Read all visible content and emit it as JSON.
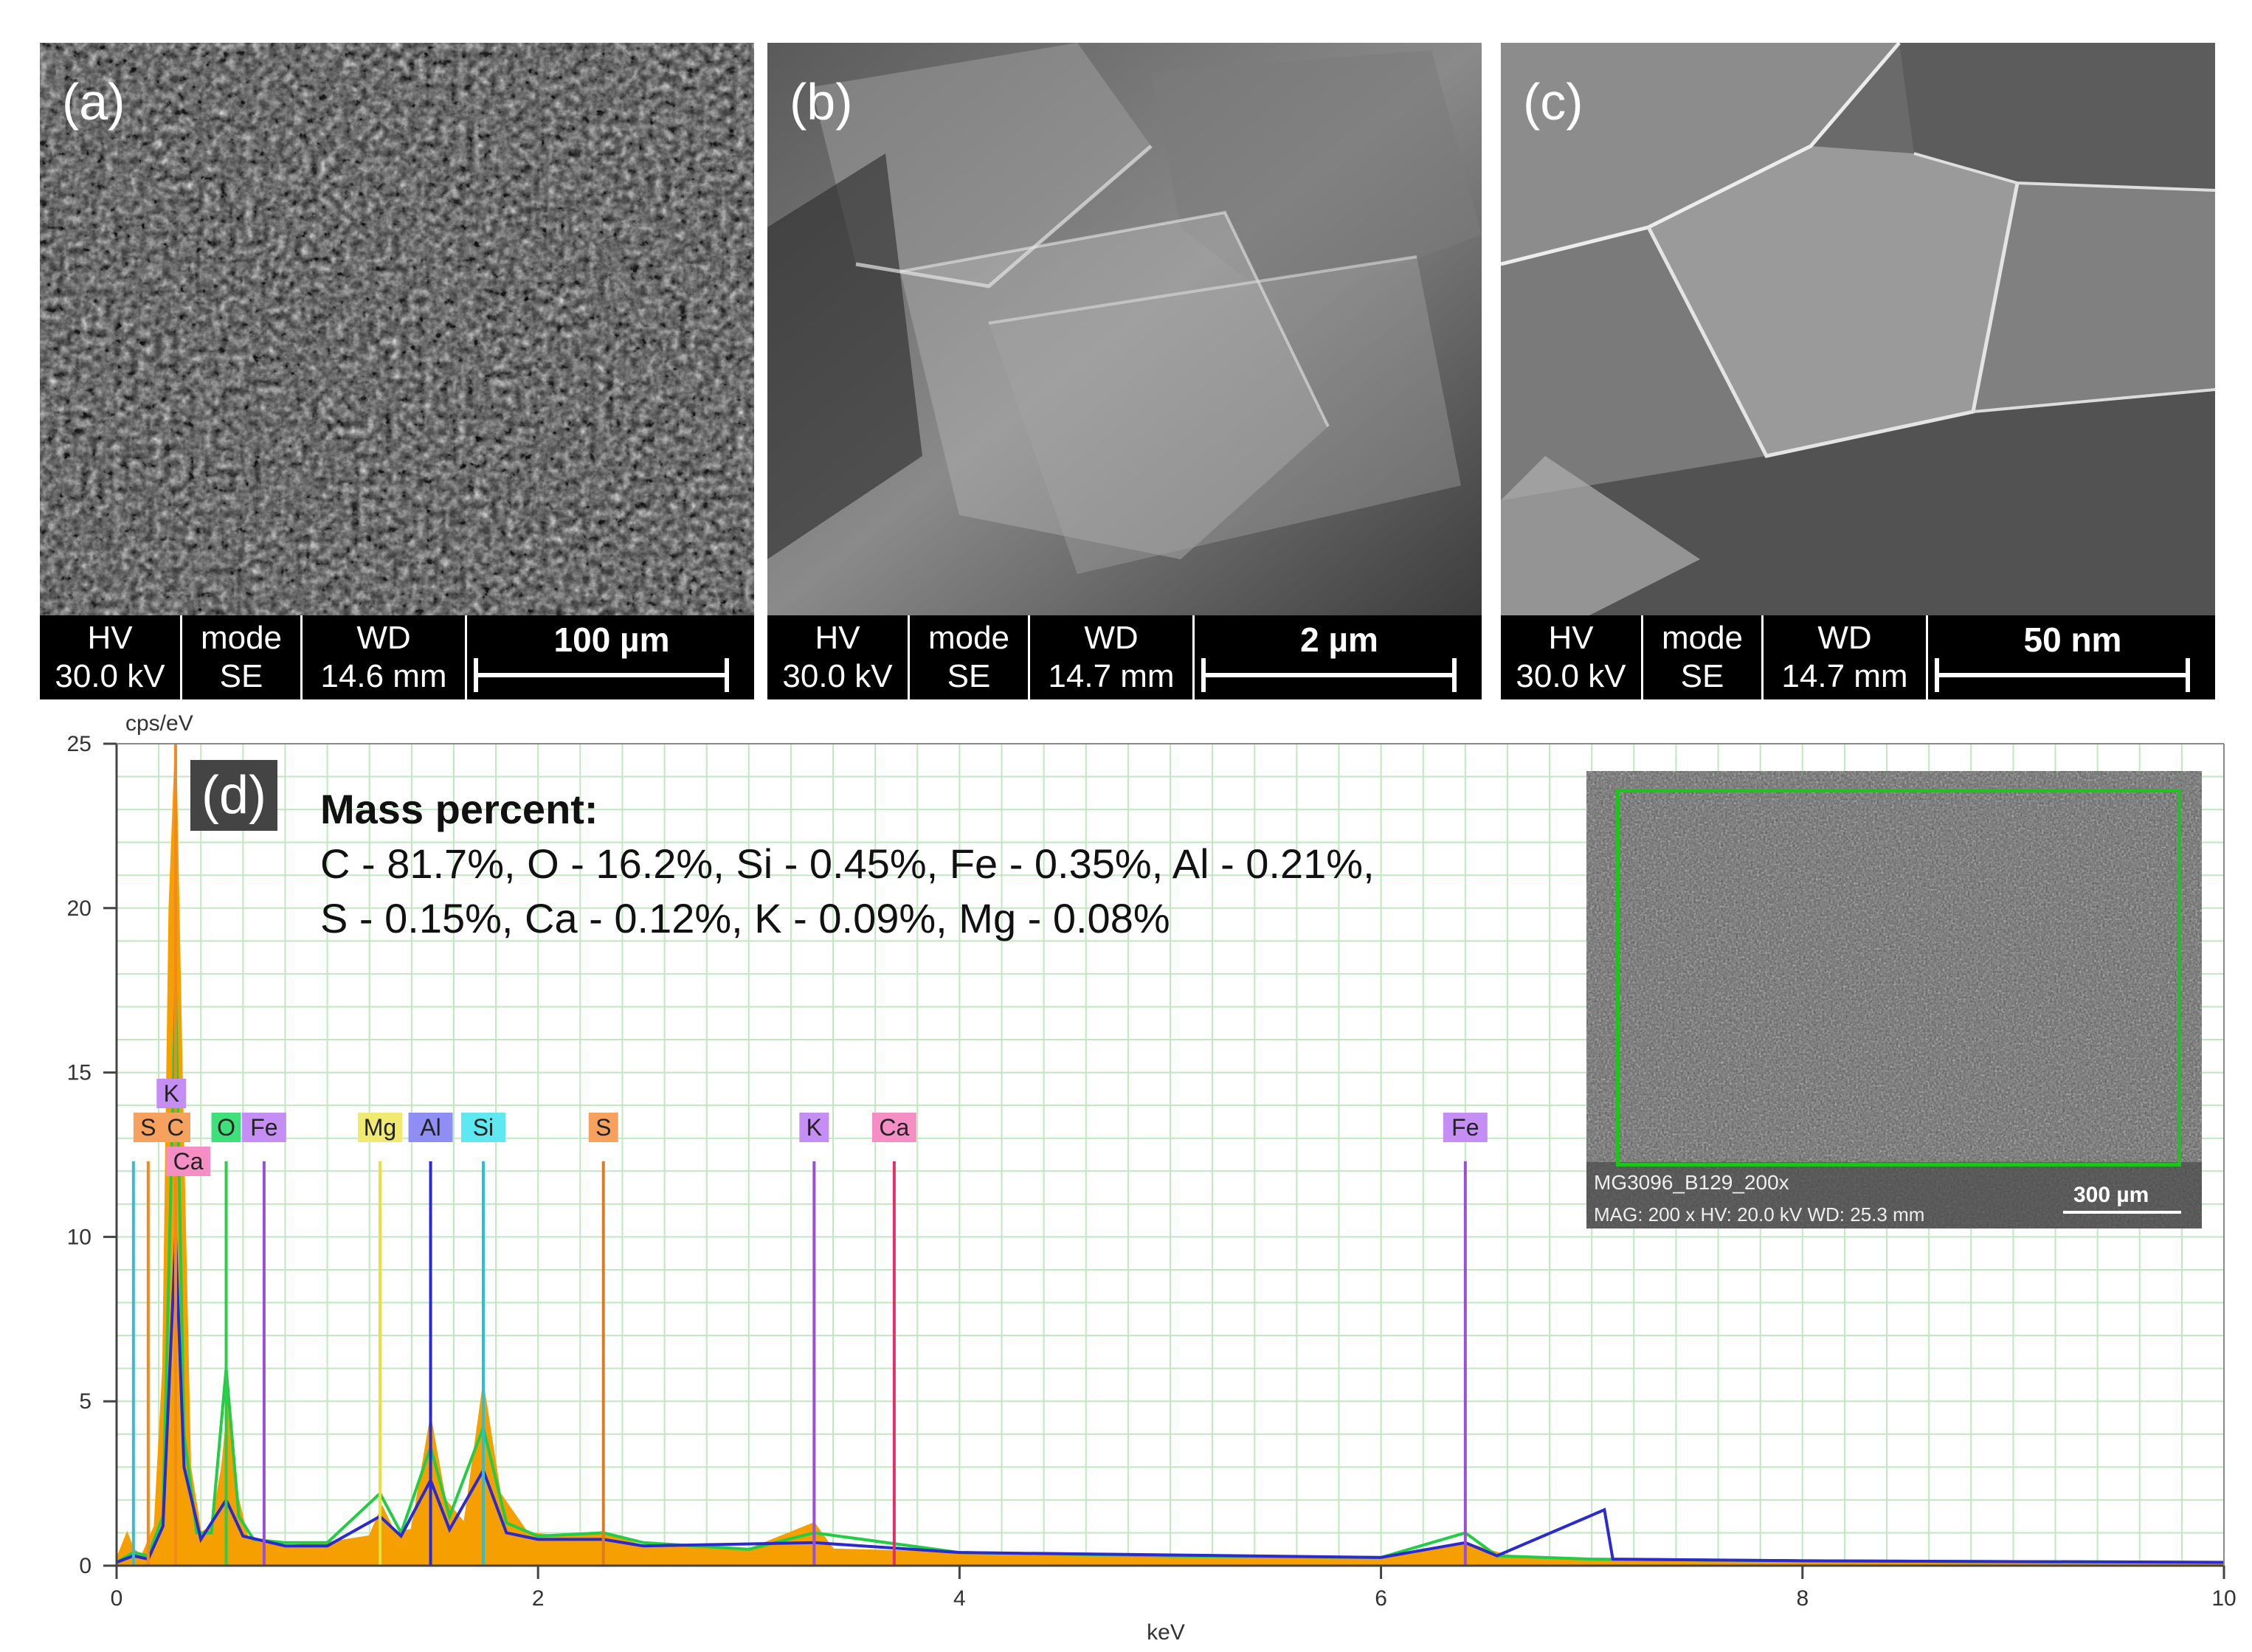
{
  "panels": [
    {
      "label": "(a)",
      "hv_head": "HV",
      "hv_val": "30.0 kV",
      "mode_head": "mode",
      "mode_val": "SE",
      "wd_head": "WD",
      "wd_val": "14.6 mm",
      "scale": "100 µm"
    },
    {
      "label": "(b)",
      "hv_head": "HV",
      "hv_val": "30.0 kV",
      "mode_head": "mode",
      "mode_val": "SE",
      "wd_head": "WD",
      "wd_val": "14.7 mm",
      "scale": "2 µm"
    },
    {
      "label": "(c)",
      "hv_head": "HV",
      "hv_val": "30.0 kV",
      "mode_head": "mode",
      "mode_val": "SE",
      "wd_head": "WD",
      "wd_val": "14.7 mm",
      "scale": "50 nm"
    }
  ],
  "panel_d": {
    "label": "(d)",
    "mass_heading": "Mass percent:",
    "mass_line1": "C - 81.7%, O - 16.2%, Si - 0.45%, Fe - 0.35%, Al - 0.21%,",
    "mass_line2": "S - 0.15%, Ca - 0.12%, K - 0.09%, Mg - 0.08%",
    "inset_line1": "MG3096_B129_200x",
    "inset_line2": "MAG: 200 x  HV: 20.0 kV  WD: 25.3 mm",
    "inset_scale": "300 µm"
  },
  "chart_data": {
    "type": "line",
    "ylabel": "cps/eV",
    "xlabel": "keV",
    "xlim": [
      0,
      10
    ],
    "ylim": [
      0,
      25
    ],
    "xticks": [
      0,
      2,
      4,
      6,
      8,
      10
    ],
    "yticks": [
      0,
      5,
      10,
      15,
      20,
      25
    ],
    "grid": true,
    "element_markers": [
      {
        "label": "S",
        "x": 0.15,
        "color": "#f7a15e",
        "row": 1
      },
      {
        "label": "C",
        "x": 0.28,
        "color": "#f7a15e",
        "row": 1
      },
      {
        "label": "K",
        "x": 0.26,
        "color": "#c58ef5",
        "row": 0
      },
      {
        "label": "Ca",
        "x": 0.34,
        "color": "#f58ec5",
        "row": 2
      },
      {
        "label": "O",
        "x": 0.52,
        "color": "#3ee07a",
        "row": 1
      },
      {
        "label": "Fe",
        "x": 0.7,
        "color": "#c58ef5",
        "row": 1
      },
      {
        "label": "Mg",
        "x": 1.25,
        "color": "#f0ea70",
        "row": 1
      },
      {
        "label": "Al",
        "x": 1.49,
        "color": "#8e8ef5",
        "row": 1
      },
      {
        "label": "Si",
        "x": 1.74,
        "color": "#5ee8f0",
        "row": 1
      },
      {
        "label": "S",
        "x": 2.31,
        "color": "#f7a15e",
        "row": 1
      },
      {
        "label": "K",
        "x": 3.31,
        "color": "#c58ef5",
        "row": 1
      },
      {
        "label": "Ca",
        "x": 3.69,
        "color": "#f58ec5",
        "row": 1
      },
      {
        "label": "Fe",
        "x": 6.4,
        "color": "#c58ef5",
        "row": 1
      }
    ],
    "peak_lines": [
      {
        "x": 0.08,
        "y": 12.3,
        "color": "#3fb8d0"
      },
      {
        "x": 0.15,
        "y": 12.3,
        "color": "#f08a20"
      },
      {
        "x": 0.28,
        "y": 25,
        "color": "#f08a20"
      },
      {
        "x": 0.52,
        "y": 12.3,
        "color": "#2ecc4a"
      },
      {
        "x": 0.7,
        "y": 12.3,
        "color": "#9b4fd6"
      },
      {
        "x": 1.25,
        "y": 12.3,
        "color": "#e8e040"
      },
      {
        "x": 1.49,
        "y": 12.3,
        "color": "#2a2ad0"
      },
      {
        "x": 1.74,
        "y": 12.3,
        "color": "#28c0d8"
      },
      {
        "x": 2.31,
        "y": 12.3,
        "color": "#e07a20"
      },
      {
        "x": 3.31,
        "y": 12.3,
        "color": "#9b4fd6"
      },
      {
        "x": 3.69,
        "y": 12.3,
        "color": "#e0306a"
      },
      {
        "x": 6.4,
        "y": 12.3,
        "color": "#9b4fd6"
      }
    ],
    "series": [
      {
        "color": "#f5a000",
        "x": [
          0.0,
          0.05,
          0.08,
          0.12,
          0.18,
          0.22,
          0.25,
          0.28,
          0.31,
          0.35,
          0.4,
          0.45,
          0.5,
          0.53,
          0.56,
          0.62,
          0.7,
          0.8,
          1.0,
          1.2,
          1.26,
          1.32,
          1.4,
          1.49,
          1.56,
          1.65,
          1.74,
          1.82,
          1.95,
          2.1,
          2.31,
          2.5,
          3.0,
          3.31,
          3.4,
          4.0,
          5.0,
          6.0,
          6.4,
          6.6,
          7.0,
          8.0,
          9.0,
          10.0
        ],
        "y": [
          0.2,
          1.0,
          0.5,
          0.3,
          1.2,
          6.0,
          20.0,
          25.0,
          15.0,
          3.0,
          1.0,
          1.2,
          3.0,
          5.0,
          2.5,
          0.9,
          0.7,
          0.6,
          0.7,
          0.9,
          1.8,
          1.0,
          1.1,
          4.5,
          2.0,
          1.3,
          5.5,
          2.2,
          1.0,
          0.9,
          1.0,
          0.6,
          0.5,
          1.3,
          0.5,
          0.4,
          0.3,
          0.25,
          0.7,
          0.3,
          0.2,
          0.15,
          0.12,
          0.1
        ]
      },
      {
        "color": "#22cc44",
        "x": [
          0.0,
          0.08,
          0.15,
          0.22,
          0.28,
          0.32,
          0.38,
          0.45,
          0.52,
          0.58,
          0.65,
          0.8,
          1.0,
          1.25,
          1.35,
          1.49,
          1.58,
          1.74,
          1.85,
          2.0,
          2.31,
          2.5,
          3.0,
          3.31,
          4.0,
          5.0,
          6.0,
          6.4,
          6.55,
          7.0,
          8.0,
          10.0
        ],
        "y": [
          0.1,
          0.4,
          0.3,
          1.5,
          17.5,
          4.0,
          1.0,
          1.0,
          6.0,
          1.5,
          0.8,
          0.7,
          0.7,
          2.2,
          1.0,
          3.6,
          1.5,
          4.2,
          1.3,
          0.9,
          1.0,
          0.7,
          0.5,
          1.0,
          0.4,
          0.3,
          0.25,
          1.0,
          0.3,
          0.2,
          0.15,
          0.1
        ]
      },
      {
        "color": "#2a2ad0",
        "x": [
          0.0,
          0.08,
          0.15,
          0.22,
          0.28,
          0.32,
          0.4,
          0.52,
          0.6,
          0.8,
          1.0,
          1.25,
          1.35,
          1.49,
          1.58,
          1.74,
          1.85,
          2.0,
          2.31,
          2.5,
          3.31,
          4.0,
          6.0,
          6.4,
          6.55,
          7.06,
          7.1,
          8.0,
          10.0
        ],
        "y": [
          0.1,
          0.3,
          0.2,
          1.2,
          10.0,
          3.0,
          0.8,
          2.0,
          0.9,
          0.6,
          0.6,
          1.5,
          0.9,
          2.6,
          1.1,
          2.9,
          1.0,
          0.8,
          0.8,
          0.6,
          0.7,
          0.4,
          0.25,
          0.7,
          0.3,
          1.7,
          0.2,
          0.15,
          0.1
        ]
      }
    ]
  }
}
